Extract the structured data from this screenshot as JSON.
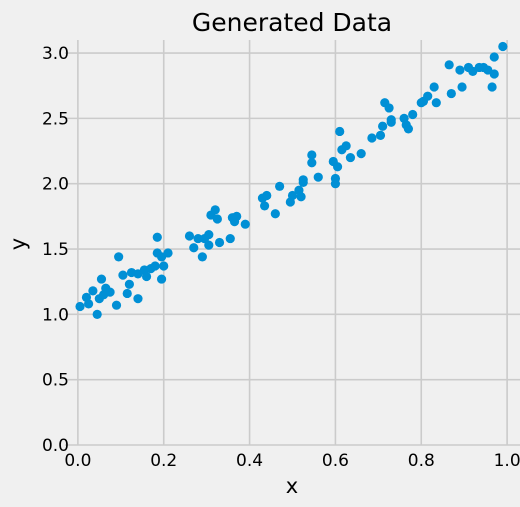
{
  "chart_data": {
    "type": "scatter",
    "title": "Generated Data",
    "xlabel": "x",
    "ylabel": "y",
    "xlim": [
      -0.03,
      1.03
    ],
    "ylim": [
      0,
      3.1
    ],
    "xticks": [
      0.0,
      0.2,
      0.4,
      0.6,
      0.8,
      1.0
    ],
    "xtick_labels": [
      "0.0",
      "0.2",
      "0.4",
      "0.6",
      "0.8",
      "1.0"
    ],
    "yticks": [
      0.0,
      0.5,
      1.0,
      1.5,
      2.0,
      2.5,
      3.0
    ],
    "ytick_labels": [
      "0.0",
      "0.5",
      "1.0",
      "1.5",
      "2.0",
      "2.5",
      "3.0"
    ],
    "grid": true,
    "marker_color": "#008fd5",
    "background_color": "#f0f0f0",
    "points": [
      {
        "x": 0.005,
        "y": 1.06
      },
      {
        "x": 0.02,
        "y": 1.13
      },
      {
        "x": 0.025,
        "y": 1.08
      },
      {
        "x": 0.035,
        "y": 1.18
      },
      {
        "x": 0.045,
        "y": 1.0
      },
      {
        "x": 0.05,
        "y": 1.12
      },
      {
        "x": 0.055,
        "y": 1.27
      },
      {
        "x": 0.06,
        "y": 1.15
      },
      {
        "x": 0.065,
        "y": 1.2
      },
      {
        "x": 0.075,
        "y": 1.17
      },
      {
        "x": 0.09,
        "y": 1.07
      },
      {
        "x": 0.095,
        "y": 1.44
      },
      {
        "x": 0.105,
        "y": 1.3
      },
      {
        "x": 0.115,
        "y": 1.16
      },
      {
        "x": 0.12,
        "y": 1.23
      },
      {
        "x": 0.125,
        "y": 1.32
      },
      {
        "x": 0.14,
        "y": 1.31
      },
      {
        "x": 0.14,
        "y": 1.12
      },
      {
        "x": 0.155,
        "y": 1.34
      },
      {
        "x": 0.16,
        "y": 1.29
      },
      {
        "x": 0.17,
        "y": 1.35
      },
      {
        "x": 0.18,
        "y": 1.37
      },
      {
        "x": 0.185,
        "y": 1.47
      },
      {
        "x": 0.185,
        "y": 1.59
      },
      {
        "x": 0.195,
        "y": 1.44
      },
      {
        "x": 0.195,
        "y": 1.27
      },
      {
        "x": 0.2,
        "y": 1.37
      },
      {
        "x": 0.21,
        "y": 1.47
      },
      {
        "x": 0.26,
        "y": 1.6
      },
      {
        "x": 0.27,
        "y": 1.51
      },
      {
        "x": 0.28,
        "y": 1.58
      },
      {
        "x": 0.29,
        "y": 1.44
      },
      {
        "x": 0.295,
        "y": 1.58
      },
      {
        "x": 0.305,
        "y": 1.53
      },
      {
        "x": 0.305,
        "y": 1.61
      },
      {
        "x": 0.31,
        "y": 1.76
      },
      {
        "x": 0.32,
        "y": 1.8
      },
      {
        "x": 0.325,
        "y": 1.73
      },
      {
        "x": 0.33,
        "y": 1.55
      },
      {
        "x": 0.355,
        "y": 1.58
      },
      {
        "x": 0.36,
        "y": 1.74
      },
      {
        "x": 0.365,
        "y": 1.71
      },
      {
        "x": 0.37,
        "y": 1.75
      },
      {
        "x": 0.39,
        "y": 1.69
      },
      {
        "x": 0.43,
        "y": 1.89
      },
      {
        "x": 0.435,
        "y": 1.83
      },
      {
        "x": 0.44,
        "y": 1.91
      },
      {
        "x": 0.46,
        "y": 1.77
      },
      {
        "x": 0.47,
        "y": 1.98
      },
      {
        "x": 0.495,
        "y": 1.86
      },
      {
        "x": 0.5,
        "y": 1.91
      },
      {
        "x": 0.515,
        "y": 1.95
      },
      {
        "x": 0.52,
        "y": 1.9
      },
      {
        "x": 0.525,
        "y": 2.03
      },
      {
        "x": 0.525,
        "y": 2.01
      },
      {
        "x": 0.545,
        "y": 2.22
      },
      {
        "x": 0.545,
        "y": 2.16
      },
      {
        "x": 0.56,
        "y": 2.05
      },
      {
        "x": 0.595,
        "y": 2.17
      },
      {
        "x": 0.6,
        "y": 2.04
      },
      {
        "x": 0.6,
        "y": 2.0
      },
      {
        "x": 0.605,
        "y": 2.13
      },
      {
        "x": 0.61,
        "y": 2.4
      },
      {
        "x": 0.615,
        "y": 2.26
      },
      {
        "x": 0.625,
        "y": 2.29
      },
      {
        "x": 0.635,
        "y": 2.2
      },
      {
        "x": 0.66,
        "y": 2.23
      },
      {
        "x": 0.685,
        "y": 2.35
      },
      {
        "x": 0.705,
        "y": 2.37
      },
      {
        "x": 0.71,
        "y": 2.44
      },
      {
        "x": 0.715,
        "y": 2.62
      },
      {
        "x": 0.725,
        "y": 2.58
      },
      {
        "x": 0.73,
        "y": 2.49
      },
      {
        "x": 0.73,
        "y": 2.47
      },
      {
        "x": 0.76,
        "y": 2.5
      },
      {
        "x": 0.765,
        "y": 2.45
      },
      {
        "x": 0.77,
        "y": 2.42
      },
      {
        "x": 0.78,
        "y": 2.53
      },
      {
        "x": 0.8,
        "y": 2.62
      },
      {
        "x": 0.805,
        "y": 2.63
      },
      {
        "x": 0.815,
        "y": 2.67
      },
      {
        "x": 0.83,
        "y": 2.74
      },
      {
        "x": 0.835,
        "y": 2.62
      },
      {
        "x": 0.865,
        "y": 2.91
      },
      {
        "x": 0.87,
        "y": 2.69
      },
      {
        "x": 0.89,
        "y": 2.87
      },
      {
        "x": 0.895,
        "y": 2.74
      },
      {
        "x": 0.91,
        "y": 2.89
      },
      {
        "x": 0.92,
        "y": 2.86
      },
      {
        "x": 0.935,
        "y": 2.89
      },
      {
        "x": 0.945,
        "y": 2.89
      },
      {
        "x": 0.955,
        "y": 2.87
      },
      {
        "x": 0.965,
        "y": 2.74
      },
      {
        "x": 0.97,
        "y": 2.97
      },
      {
        "x": 0.97,
        "y": 2.84
      },
      {
        "x": 0.99,
        "y": 3.05
      }
    ]
  }
}
